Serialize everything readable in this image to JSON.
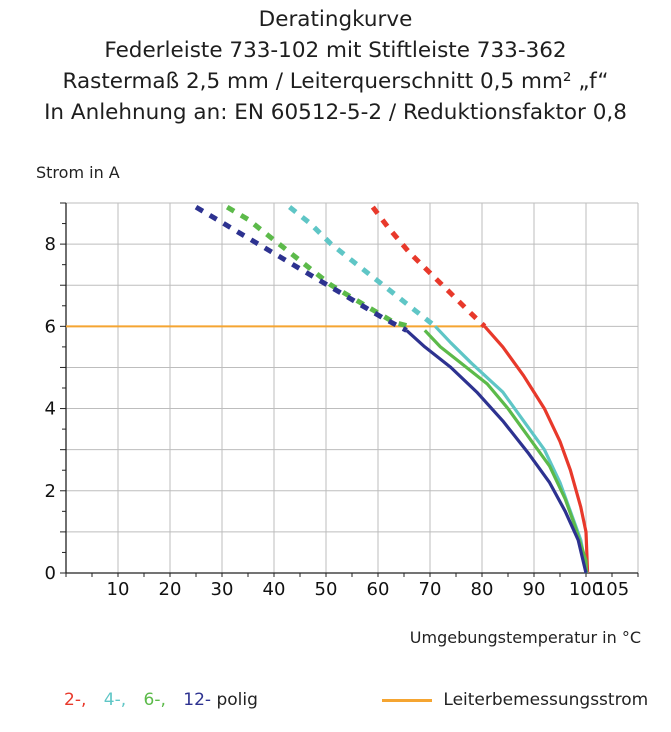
{
  "chart_data": {
    "type": "line",
    "title_lines": [
      "Deratingkurve",
      "Federleiste 733-102 mit Stiftleiste 733-362",
      "Rastermaß 2,5 mm / Leiterquerschnitt 0,5 mm² „f“",
      "In Anlehnung an: EN 60512-5-2 / Reduktionsfaktor 0,8"
    ],
    "xlabel": "Umgebungstemperatur in  °C",
    "ylabel": "Strom in A",
    "xlim": [
      0,
      110
    ],
    "ylim": [
      0,
      9
    ],
    "x_ticks": [
      10,
      20,
      30,
      40,
      50,
      60,
      70,
      80,
      90,
      100,
      105
    ],
    "y_ticks": [
      0,
      2,
      4,
      6,
      8
    ],
    "grid": true,
    "legend_position": "bottom",
    "series": [
      {
        "name": "2-,",
        "color": "#e8392b",
        "solid": [
          [
            80.5,
            6.0
          ],
          [
            84,
            5.5
          ],
          [
            88,
            4.8
          ],
          [
            92,
            4.0
          ],
          [
            95,
            3.2
          ],
          [
            97,
            2.5
          ],
          [
            99,
            1.6
          ],
          [
            100,
            1.0
          ],
          [
            100.3,
            0
          ]
        ],
        "dashed": [
          [
            59,
            8.9
          ],
          [
            62,
            8.4
          ],
          [
            66,
            7.8
          ],
          [
            70,
            7.3
          ],
          [
            74,
            6.8
          ],
          [
            78,
            6.3
          ],
          [
            80.5,
            6.0
          ]
        ]
      },
      {
        "name": "4-,",
        "color": "#5fc6c6",
        "solid": [
          [
            71,
            6.0
          ],
          [
            74,
            5.6
          ],
          [
            78,
            5.1
          ],
          [
            84,
            4.4
          ],
          [
            88,
            3.7
          ],
          [
            92,
            3.0
          ],
          [
            95,
            2.2
          ],
          [
            97,
            1.5
          ],
          [
            99,
            0.8
          ],
          [
            100.2,
            0
          ]
        ],
        "dashed": [
          [
            43,
            8.9
          ],
          [
            47,
            8.5
          ],
          [
            51,
            8.0
          ],
          [
            55,
            7.6
          ],
          [
            59,
            7.2
          ],
          [
            63,
            6.8
          ],
          [
            67,
            6.4
          ],
          [
            71,
            6.0
          ]
        ]
      },
      {
        "name": "6-,",
        "color": "#5cba4a",
        "solid": [
          [
            69,
            5.9
          ],
          [
            72,
            5.5
          ],
          [
            76,
            5.1
          ],
          [
            81,
            4.6
          ],
          [
            85,
            4.0
          ],
          [
            89,
            3.3
          ],
          [
            93,
            2.6
          ],
          [
            96,
            1.8
          ],
          [
            98,
            1.1
          ],
          [
            100,
            0.3
          ],
          [
            100.1,
            0
          ]
        ],
        "dashed": [
          [
            31,
            8.9
          ],
          [
            35,
            8.6
          ],
          [
            39,
            8.2
          ],
          [
            43,
            7.8
          ],
          [
            47,
            7.4
          ],
          [
            51,
            7.0
          ],
          [
            55,
            6.7
          ],
          [
            59,
            6.4
          ],
          [
            63,
            6.1
          ],
          [
            66,
            6.0
          ]
        ]
      },
      {
        "name": "12-",
        "color": "#2d3290",
        "solid": [
          [
            65.5,
            5.9
          ],
          [
            69,
            5.5
          ],
          [
            74,
            5.0
          ],
          [
            79,
            4.4
          ],
          [
            84,
            3.7
          ],
          [
            89,
            2.9
          ],
          [
            93,
            2.2
          ],
          [
            96,
            1.5
          ],
          [
            98.5,
            0.8
          ],
          [
            100,
            0
          ]
        ],
        "dashed": [
          [
            25,
            8.9
          ],
          [
            29,
            8.6
          ],
          [
            33,
            8.3
          ],
          [
            37,
            8.0
          ],
          [
            41,
            7.7
          ],
          [
            45,
            7.4
          ],
          [
            49,
            7.1
          ],
          [
            53,
            6.8
          ],
          [
            57,
            6.5
          ],
          [
            61,
            6.2
          ],
          [
            65.5,
            5.9
          ]
        ]
      }
    ],
    "reference_line": {
      "name": "Leiterbemessungsstrom",
      "y": 6,
      "x_range": [
        0,
        80.5
      ],
      "color": "#f5a531"
    },
    "legend_suffix": "polig"
  }
}
